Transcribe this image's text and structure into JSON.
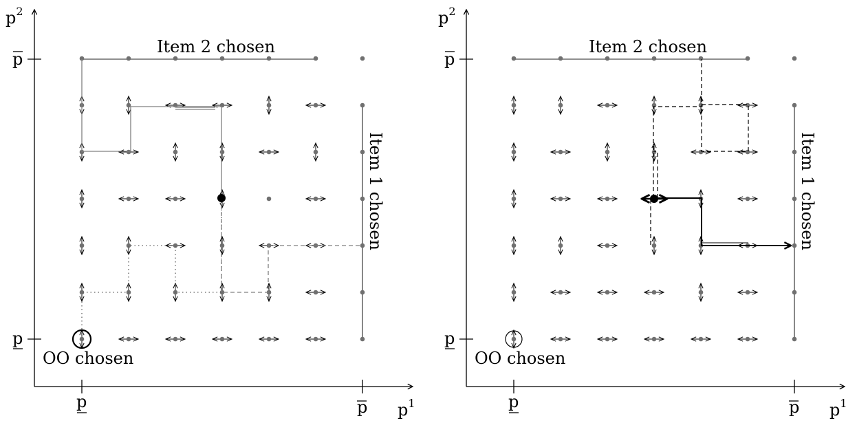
{
  "diagram": {
    "panels": [
      {
        "id": "left",
        "x_axis_label": "p",
        "x_axis_sup": "1",
        "y_axis_label": "p",
        "y_axis_sup": "2",
        "x_tick_low": "p",
        "x_tick_high": "p",
        "y_tick_low": "p",
        "y_tick_high": "p",
        "top_region_label": "Item 2 chosen",
        "right_region_label": "Item 1 chosen",
        "origin_region_label": "OO chosen",
        "grid_size": 7,
        "arrow_dirs": [
          [
            "v",
            "h",
            "h",
            "h",
            "h",
            "h"
          ],
          [
            "v",
            "v",
            "v",
            "v",
            "v",
            "h"
          ],
          [
            "v",
            "v",
            "h",
            "v",
            "h",
            "h"
          ],
          [
            "v",
            "h",
            "h",
            "v",
            "v",
            "h"
          ],
          [
            "v",
            "h",
            "v",
            "v",
            "h",
            "v"
          ],
          [
            "v",
            "v",
            "h",
            "h",
            "v",
            "h"
          ]
        ],
        "start_point": [
          4,
          3
        ],
        "origin_circle_style": "bold"
      },
      {
        "id": "right",
        "x_axis_label": "p",
        "x_axis_sup": "1",
        "y_axis_label": "p",
        "y_axis_sup": "2",
        "x_tick_low": "p",
        "x_tick_high": "p",
        "y_tick_low": "p",
        "y_tick_high": "p",
        "top_region_label": "Item 2 chosen",
        "right_region_label": "Item 1 chosen",
        "origin_region_label": "OO chosen",
        "grid_size": 7,
        "arrow_dirs": [
          [
            "v",
            "h",
            "h",
            "h",
            "h",
            "h"
          ],
          [
            "v",
            "h",
            "h",
            "h",
            "v",
            "h"
          ],
          [
            "v",
            "v",
            "h",
            "v",
            "v",
            "h"
          ],
          [
            "v",
            "h",
            "h",
            "h",
            "v",
            "h"
          ],
          [
            "v",
            "h",
            "v",
            "v",
            "h",
            "h"
          ],
          [
            "v",
            "v",
            "h",
            "v",
            "v",
            "h"
          ]
        ],
        "start_point": [
          3,
          3
        ],
        "origin_circle_style": "thin"
      }
    ]
  }
}
